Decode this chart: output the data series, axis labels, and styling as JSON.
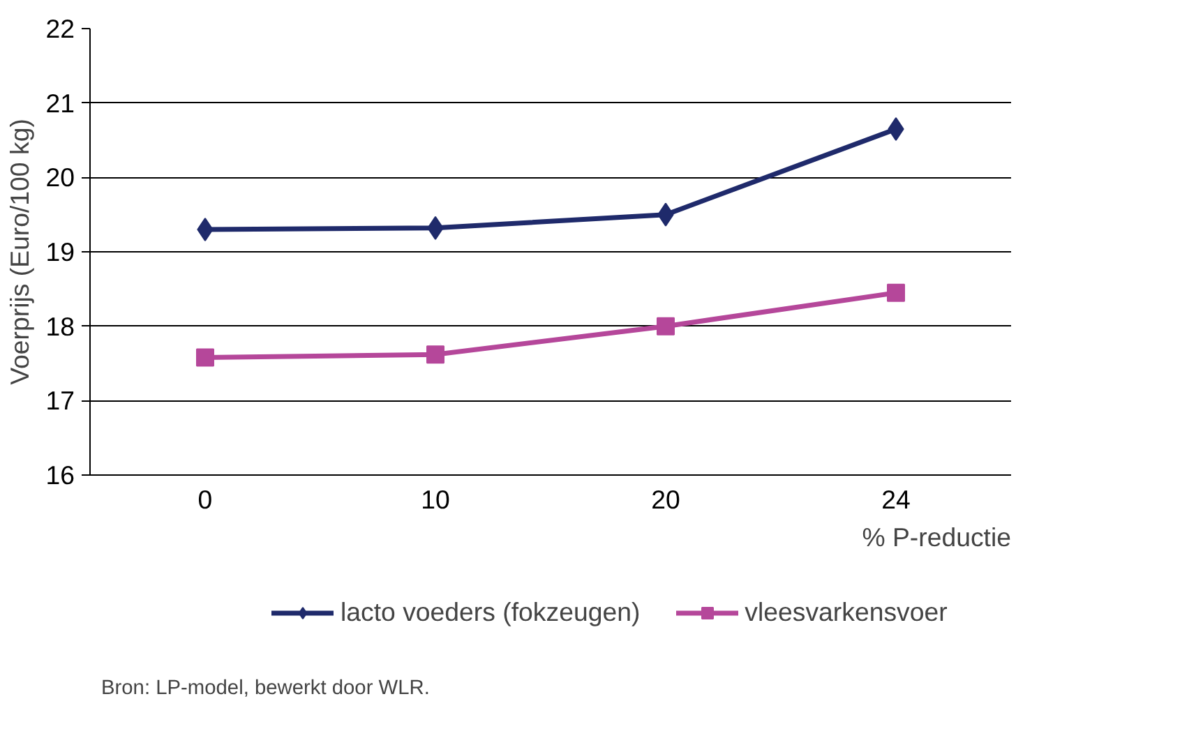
{
  "chart_data": {
    "type": "line",
    "ylabel": "Voerprijs (Euro/100 kg)",
    "xlabel": "% P-reductie",
    "categories": [
      "0",
      "10",
      "20",
      "24"
    ],
    "series": [
      {
        "name": "lacto voeders (fokzeugen)",
        "color": "#1f2a6b",
        "marker": "diamond",
        "values": [
          19.3,
          19.32,
          19.5,
          20.65
        ]
      },
      {
        "name": "vleesvarkensvoer",
        "color": "#b5479a",
        "marker": "square",
        "values": [
          17.58,
          17.62,
          18.0,
          18.45
        ]
      }
    ],
    "ylim": [
      16,
      22
    ],
    "yticks": [
      16,
      17,
      18,
      19,
      20,
      21,
      22
    ],
    "grid": "y",
    "legend": "bottom",
    "line_style": "solid",
    "annotations": [
      "Bron: LP-model, bewerkt door WLR."
    ]
  }
}
